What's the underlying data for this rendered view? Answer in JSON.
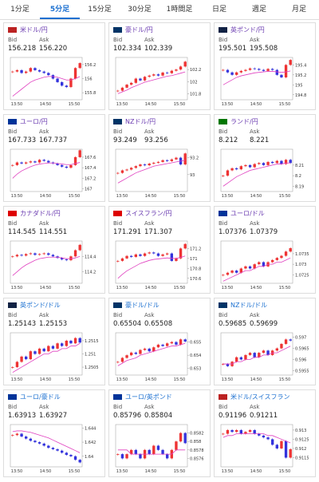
{
  "tabs": [
    "1分足",
    "5分足",
    "15分足",
    "30分足",
    "1時間足",
    "日足",
    "週足",
    "月足"
  ],
  "active_tab": 1,
  "bid_label": "Bid",
  "ask_label": "Ask",
  "time_labels": [
    "13:50",
    "14:50",
    "15:50"
  ],
  "charts": [
    {
      "name": "米ドル/円",
      "bid": "156.218",
      "ask": "156.220",
      "ylim": [
        155.7,
        156.3
      ],
      "yticks": [
        155.8,
        156,
        156.2
      ],
      "close": [
        156.1,
        156.12,
        156.08,
        156.1,
        156.15,
        156.12,
        156.1,
        156.08,
        156.05,
        156.0,
        155.95,
        155.9,
        155.88,
        156.0,
        156.15,
        156.22
      ],
      "ma": [
        155.75,
        155.8,
        155.85,
        155.9,
        155.95,
        155.98,
        156.0,
        156.02,
        156.03,
        156.03,
        156.02,
        156.0,
        155.98,
        155.98,
        156.0,
        156.03
      ]
    },
    {
      "name": "豪ドル/円",
      "bid": "102.334",
      "ask": "102.339",
      "ylim": [
        101.7,
        102.4
      ],
      "yticks": [
        101.8,
        102,
        102.2
      ],
      "close": [
        101.85,
        101.9,
        101.95,
        101.98,
        102.05,
        102.02,
        102.08,
        102.1,
        102.12,
        102.1,
        102.15,
        102.14,
        102.18,
        102.2,
        102.25,
        102.33
      ],
      "ma": [
        101.8,
        101.83,
        101.86,
        101.9,
        101.93,
        101.96,
        101.99,
        102.01,
        102.03,
        102.05,
        102.07,
        102.09,
        102.1,
        102.12,
        102.14,
        102.16
      ]
    },
    {
      "name": "英ポンド/円",
      "bid": "195.501",
      "ask": "195.508",
      "ylim": [
        194.7,
        195.55
      ],
      "yticks": [
        194.8,
        195,
        195.2,
        195.4
      ],
      "close": [
        195.3,
        195.25,
        195.2,
        195.25,
        195.28,
        195.3,
        195.33,
        195.32,
        195.3,
        195.28,
        195.32,
        195.3,
        195.2,
        195.15,
        195.4,
        195.5
      ],
      "ma": [
        195.0,
        195.05,
        195.1,
        195.15,
        195.18,
        195.2,
        195.22,
        195.24,
        195.25,
        195.26,
        195.27,
        195.27,
        195.26,
        195.25,
        195.26,
        195.28
      ]
    },
    {
      "name": "ユーロ/円",
      "bid": "167.733",
      "ask": "167.737",
      "ylim": [
        166.95,
        167.75
      ],
      "yticks": [
        167,
        167.2,
        167.4,
        167.6
      ],
      "close": [
        167.45,
        167.5,
        167.48,
        167.5,
        167.52,
        167.5,
        167.55,
        167.53,
        167.5,
        167.48,
        167.45,
        167.42,
        167.4,
        167.45,
        167.6,
        167.73
      ],
      "ma": [
        167.2,
        167.28,
        167.34,
        167.38,
        167.42,
        167.45,
        167.47,
        167.48,
        167.49,
        167.49,
        167.48,
        167.47,
        167.46,
        167.46,
        167.48,
        167.5
      ]
    },
    {
      "name": "NZドル/円",
      "bid": "93.249",
      "ask": "93.256",
      "ylim": [
        92.8,
        93.3
      ],
      "yticks": [
        93,
        93.2
      ],
      "close": [
        93.02,
        93.05,
        93.06,
        93.08,
        93.1,
        93.12,
        93.11,
        93.13,
        93.14,
        93.15,
        93.17,
        93.16,
        93.18,
        93.2,
        93.12,
        93.25
      ],
      "ma": [
        92.9,
        92.93,
        92.96,
        92.99,
        93.02,
        93.04,
        93.06,
        93.08,
        93.1,
        93.11,
        93.12,
        93.13,
        93.14,
        93.15,
        93.16,
        93.17
      ]
    },
    {
      "name": "ランド/円",
      "bid": "8.212",
      "ask": "8.221",
      "ylim": [
        8.185,
        8.225
      ],
      "yticks": [
        8.19,
        8.2,
        8.21
      ],
      "close": [
        8.2,
        8.205,
        8.207,
        8.206,
        8.209,
        8.21,
        8.208,
        8.211,
        8.212,
        8.21,
        8.213,
        8.212,
        8.214,
        8.211,
        8.215,
        8.212
      ],
      "ma": [
        8.19,
        8.193,
        8.196,
        8.199,
        8.201,
        8.203,
        8.205,
        8.206,
        8.207,
        8.208,
        8.209,
        8.21,
        8.211,
        8.211,
        8.212,
        8.212
      ]
    },
    {
      "name": "カナダドル/円",
      "bid": "114.545",
      "ask": "114.551",
      "ylim": [
        114.05,
        114.6
      ],
      "yticks": [
        114.2,
        114.4
      ],
      "close": [
        114.4,
        114.42,
        114.41,
        114.43,
        114.44,
        114.42,
        114.43,
        114.44,
        114.42,
        114.4,
        114.38,
        114.36,
        114.35,
        114.4,
        114.48,
        114.55
      ],
      "ma": [
        114.15,
        114.2,
        114.25,
        114.29,
        114.32,
        114.35,
        114.37,
        114.38,
        114.39,
        114.39,
        114.39,
        114.38,
        114.37,
        114.37,
        114.38,
        114.4
      ]
    },
    {
      "name": "スイスフラン/円",
      "bid": "171.291",
      "ask": "171.307",
      "ylim": [
        170.5,
        171.35
      ],
      "yticks": [
        170.6,
        170.8,
        171,
        171.2
      ],
      "close": [
        170.95,
        171.0,
        171.05,
        171.03,
        171.08,
        171.05,
        171.1,
        171.12,
        171.1,
        171.05,
        171.08,
        171.1,
        170.95,
        171.0,
        171.2,
        171.29
      ],
      "ma": [
        170.6,
        170.68,
        170.75,
        170.8,
        170.85,
        170.9,
        170.93,
        170.96,
        170.98,
        170.99,
        171.0,
        171.01,
        171.0,
        171.0,
        171.02,
        171.05
      ]
    },
    {
      "name": "ユーロ/ドル",
      "bid": "1.07376",
      "ask": "1.07379",
      "ylim": [
        1.0721,
        1.0741
      ],
      "yticks": [
        1.0725,
        1.073,
        1.0735
      ],
      "close": [
        1.0725,
        1.0726,
        1.0727,
        1.0726,
        1.0728,
        1.0729,
        1.0728,
        1.073,
        1.0731,
        1.0729,
        1.0731,
        1.0732,
        1.0733,
        1.0734,
        1.0736,
        1.07376
      ],
      "ma": [
        1.0722,
        1.0723,
        1.0724,
        1.0725,
        1.0726,
        1.0727,
        1.0727,
        1.0728,
        1.0729,
        1.0729,
        1.073,
        1.073,
        1.0731,
        1.0731,
        1.0732,
        1.0733
      ]
    },
    {
      "name": "英ポンド/ドル",
      "bid": "1.25143",
      "ask": "1.25153",
      "ylim": [
        1.2502,
        1.2518
      ],
      "yticks": [
        1.2505,
        1.251,
        1.2515
      ],
      "close": [
        1.2505,
        1.2507,
        1.2509,
        1.2508,
        1.2511,
        1.251,
        1.2512,
        1.2511,
        1.2513,
        1.2512,
        1.2514,
        1.2513,
        1.2515,
        1.2514,
        1.2516,
        1.25143
      ],
      "ma": [
        1.2503,
        1.2504,
        1.2505,
        1.2506,
        1.2507,
        1.2508,
        1.2509,
        1.251,
        1.251,
        1.2511,
        1.2511,
        1.2512,
        1.2512,
        1.2513,
        1.2513,
        1.2514
      ]
    },
    {
      "name": "豪ドル/ドル",
      "bid": "0.65504",
      "ask": "0.65508",
      "ylim": [
        0.6525,
        0.6557
      ],
      "yticks": [
        0.653,
        0.654,
        0.655
      ],
      "close": [
        0.6535,
        0.6538,
        0.654,
        0.6542,
        0.6541,
        0.6544,
        0.6545,
        0.6543,
        0.6546,
        0.6548,
        0.6547,
        0.6549,
        0.655,
        0.6548,
        0.6552,
        0.65504
      ],
      "ma": [
        0.6532,
        0.6534,
        0.6536,
        0.6537,
        0.6538,
        0.654,
        0.6541,
        0.6542,
        0.6543,
        0.6544,
        0.6545,
        0.6546,
        0.6547,
        0.6547,
        0.6548,
        0.6549
      ]
    },
    {
      "name": "NZドル/ドル",
      "bid": "0.59685",
      "ask": "0.59699",
      "ylim": [
        0.5953,
        0.5972
      ],
      "yticks": [
        0.5955,
        0.596,
        0.5965,
        0.597
      ],
      "close": [
        0.5958,
        0.5957,
        0.5959,
        0.5961,
        0.596,
        0.5962,
        0.5963,
        0.5961,
        0.5963,
        0.5964,
        0.5962,
        0.5964,
        0.5965,
        0.5967,
        0.5969,
        0.59685
      ],
      "ma": [
        0.5958,
        0.5958,
        0.5958,
        0.5959,
        0.5959,
        0.596,
        0.596,
        0.5961,
        0.5961,
        0.5962,
        0.5962,
        0.5963,
        0.5963,
        0.5964,
        0.5965,
        0.5966
      ]
    },
    {
      "name": "ユーロ/豪ドル",
      "bid": "1.63913",
      "ask": "1.63927",
      "ylim": [
        1.6385,
        1.6445
      ],
      "yticks": [
        1.64,
        1.642,
        1.644
      ],
      "close": [
        1.643,
        1.6432,
        1.6428,
        1.6425,
        1.6422,
        1.642,
        1.6418,
        1.6415,
        1.6412,
        1.641,
        1.6408,
        1.6405,
        1.6402,
        1.64,
        1.6395,
        1.63913
      ],
      "ma": [
        1.6435,
        1.6436,
        1.6436,
        1.6435,
        1.6434,
        1.6432,
        1.643,
        1.6428,
        1.6426,
        1.6423,
        1.642,
        1.6417,
        1.6414,
        1.6411,
        1.6408,
        1.6405
      ]
    },
    {
      "name": "ユーロ/英ポンド",
      "bid": "0.85796",
      "ask": "0.85804",
      "ylim": [
        0.8574,
        0.8584
      ],
      "yticks": [
        0.8576,
        0.8578,
        0.858,
        0.8582
      ],
      "close": [
        0.8577,
        0.8576,
        0.8577,
        0.8578,
        0.8577,
        0.8576,
        0.8578,
        0.8577,
        0.8579,
        0.8578,
        0.8577,
        0.8576,
        0.8578,
        0.858,
        0.8582,
        0.85796
      ],
      "ma": [
        0.8578,
        0.8578,
        0.8578,
        0.8577,
        0.8577,
        0.8577,
        0.8577,
        0.8577,
        0.8577,
        0.8577,
        0.8577,
        0.8577,
        0.8577,
        0.8578,
        0.8578,
        0.8578
      ]
    },
    {
      "name": "米ドル/スイスフラン",
      "bid": "0.91196",
      "ask": "0.91211",
      "ylim": [
        0.911,
        0.9133
      ],
      "yticks": [
        0.9115,
        0.912,
        0.9125,
        0.913
      ],
      "close": [
        0.9128,
        0.913,
        0.9129,
        0.913,
        0.9128,
        0.9129,
        0.913,
        0.9128,
        0.9127,
        0.9126,
        0.9125,
        0.9122,
        0.912,
        0.9124,
        0.9115,
        0.91196
      ],
      "ma": [
        0.9126,
        0.9127,
        0.9127,
        0.9128,
        0.9128,
        0.9128,
        0.9128,
        0.9128,
        0.9128,
        0.9128,
        0.9127,
        0.9127,
        0.9126,
        0.9125,
        0.9124,
        0.9123
      ]
    }
  ]
}
